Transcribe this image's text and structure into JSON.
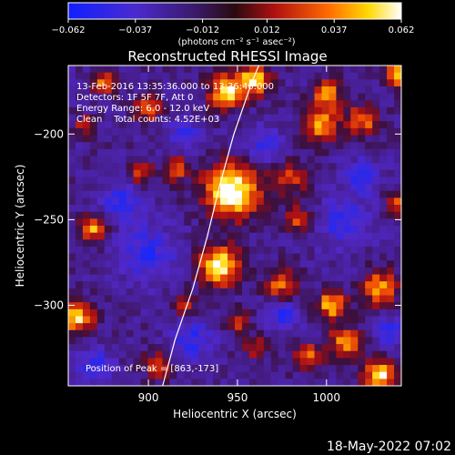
{
  "chart_data": {
    "type": "heatmap",
    "title": "Reconstructed RHESSI Image",
    "xlabel": "Heliocentric X (arcsec)",
    "ylabel": "Heliocentric Y (arcsec)",
    "xlim": [
      855,
      1042
    ],
    "ylim": [
      -347,
      -160
    ],
    "x_ticks": [
      900,
      950,
      1000
    ],
    "y_ticks": [
      -200,
      -250,
      -300
    ],
    "colorbar": {
      "min": -0.062,
      "max": 0.062,
      "tick_values": [
        -0.062,
        -0.037,
        -0.012,
        0.012,
        0.037,
        0.062
      ],
      "tick_labels": [
        "−0.062",
        "−0.037",
        "−0.012",
        "0.012",
        "0.037",
        "0.062"
      ],
      "unit_label": "(photons cm⁻² s⁻¹ asec⁻²)",
      "colors": [
        "#1020ff",
        "#5b1fc8",
        "#3a1a8a",
        "#c01010",
        "#ff6a00",
        "#ffd800",
        "#ffffff"
      ]
    },
    "info_lines": [
      "13-Feb-2016 13:35:36.000 to 13:36:40.000",
      "Detectors: 1F 5F 7F, Att 0",
      "Energy Range: 6.0 - 12.0 keV",
      "Clean    Total counts: 4.52E+03"
    ],
    "peak_label": "Position of Peak = [863,-173]",
    "limb_curve": {
      "x": [
        908,
        915,
        925,
        933,
        940,
        948,
        953,
        958,
        962
      ],
      "y": [
        -347,
        -320,
        -290,
        -260,
        -230,
        -200,
        -185,
        -170,
        -160
      ]
    },
    "grid": false
  },
  "footer": {
    "date": "18-May-2022 07:02"
  }
}
